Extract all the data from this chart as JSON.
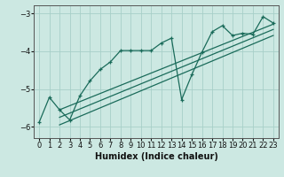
{
  "xlabel": "Humidex (Indice chaleur)",
  "bg_color": "#cce8e2",
  "grid_color": "#a8cfc8",
  "line_color": "#1a6b5a",
  "x_values": [
    0,
    1,
    2,
    3,
    4,
    5,
    6,
    7,
    8,
    9,
    10,
    11,
    12,
    13,
    14,
    15,
    16,
    17,
    18,
    19,
    20,
    21,
    22,
    23
  ],
  "y_main": [
    -5.88,
    -5.22,
    -5.55,
    -5.82,
    -5.18,
    -4.78,
    -4.48,
    -4.28,
    -3.98,
    -3.98,
    -3.98,
    -3.98,
    -3.78,
    -3.65,
    -5.28,
    -4.62,
    -4.02,
    -3.48,
    -3.32,
    -3.58,
    -3.52,
    -3.55,
    -3.08,
    -3.25
  ],
  "reg_x1": 2,
  "reg_x2": 23,
  "reg_top_y1": -5.55,
  "reg_top_y2": -3.28,
  "reg_mid_y1": -5.75,
  "reg_mid_y2": -3.42,
  "reg_bot_y1": -5.95,
  "reg_bot_y2": -3.58,
  "ylim": [
    -6.3,
    -2.78
  ],
  "xlim": [
    -0.5,
    23.5
  ],
  "yticks": [
    -6,
    -5,
    -4,
    -3
  ],
  "xticks": [
    0,
    1,
    2,
    3,
    4,
    5,
    6,
    7,
    8,
    9,
    10,
    11,
    12,
    13,
    14,
    15,
    16,
    17,
    18,
    19,
    20,
    21,
    22,
    23
  ],
  "xlabel_fontsize": 7,
  "tick_labelsize": 6
}
